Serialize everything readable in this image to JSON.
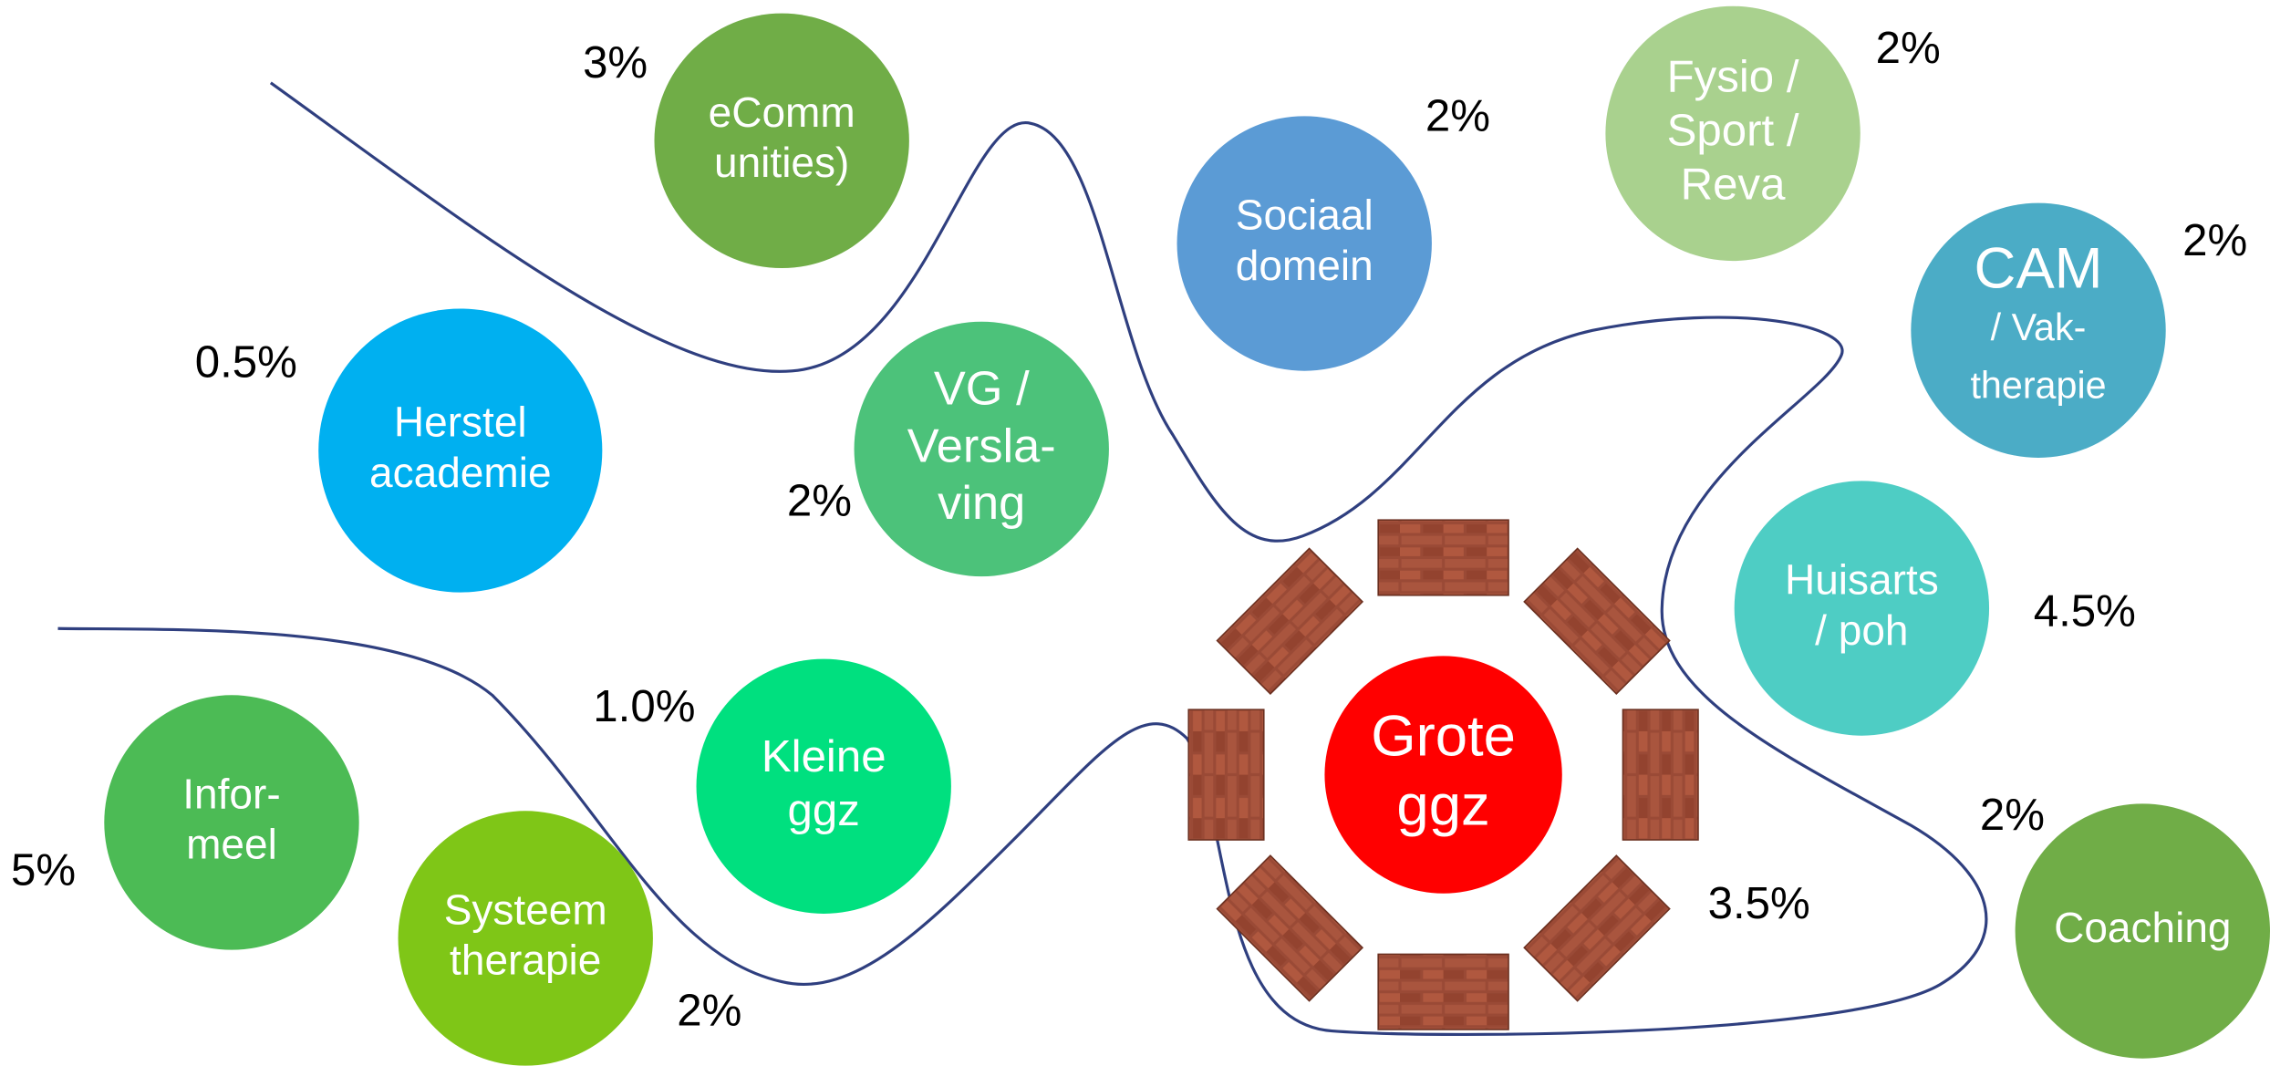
{
  "nodes": [
    {
      "label": [
        "eComm",
        "unities)"
      ],
      "percent": "3%"
    },
    {
      "label": [
        "Sociaal",
        "domein"
      ],
      "percent": "2%"
    },
    {
      "label": [
        "Fysio /",
        "Sport /",
        "Reva"
      ],
      "percent": "2%"
    },
    {
      "label": [
        "CAM",
        "/ Vak-",
        "therapie"
      ],
      "percent": "2%"
    },
    {
      "label": [
        "Herstel",
        "academie"
      ],
      "percent": "0.5%"
    },
    {
      "label": [
        "VG /",
        "Versla-",
        "ving"
      ],
      "percent": "2%"
    },
    {
      "label": [
        "Huisarts",
        "/ poh"
      ],
      "percent": "4.5%"
    },
    {
      "label": [
        "Kleine",
        "ggz"
      ],
      "percent": "1.0%"
    },
    {
      "label": [
        "Infor-",
        "meel"
      ],
      "percent": "5%"
    },
    {
      "label": [
        "Systeem",
        "therapie"
      ],
      "percent": "2%"
    },
    {
      "label": [
        "Grote",
        "ggz"
      ],
      "percent": "3.5%"
    },
    {
      "label": [
        "Coaching"
      ],
      "percent": "2%"
    }
  ]
}
